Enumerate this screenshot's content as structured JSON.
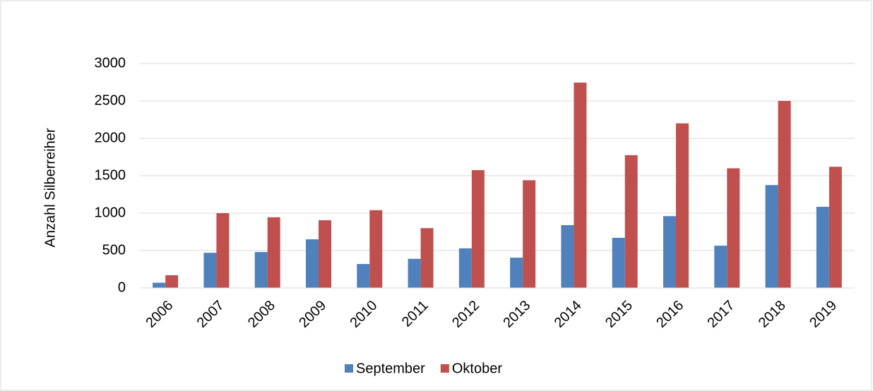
{
  "chart_data": {
    "type": "bar",
    "y_label": "Anzahl Silberreiher",
    "categories": [
      "2006",
      "2007",
      "2008",
      "2009",
      "2010",
      "2011",
      "2012",
      "2013",
      "2014",
      "2015",
      "2016",
      "2017",
      "2018",
      "2019"
    ],
    "series": [
      {
        "name": "September",
        "color": "#4f81bd",
        "values": [
          70,
          470,
          480,
          650,
          320,
          390,
          530,
          405,
          840,
          670,
          960,
          565,
          1375,
          1085
        ]
      },
      {
        "name": "Oktober",
        "color": "#c0504d",
        "values": [
          170,
          1000,
          945,
          905,
          1040,
          800,
          1575,
          1440,
          2745,
          1775,
          2200,
          1600,
          2500,
          1620
        ]
      }
    ],
    "ylim": [
      0,
      3000
    ],
    "yticks": [
      0,
      500,
      1000,
      1500,
      2000,
      2500,
      3000
    ],
    "grid": true,
    "legend": "bottom"
  }
}
